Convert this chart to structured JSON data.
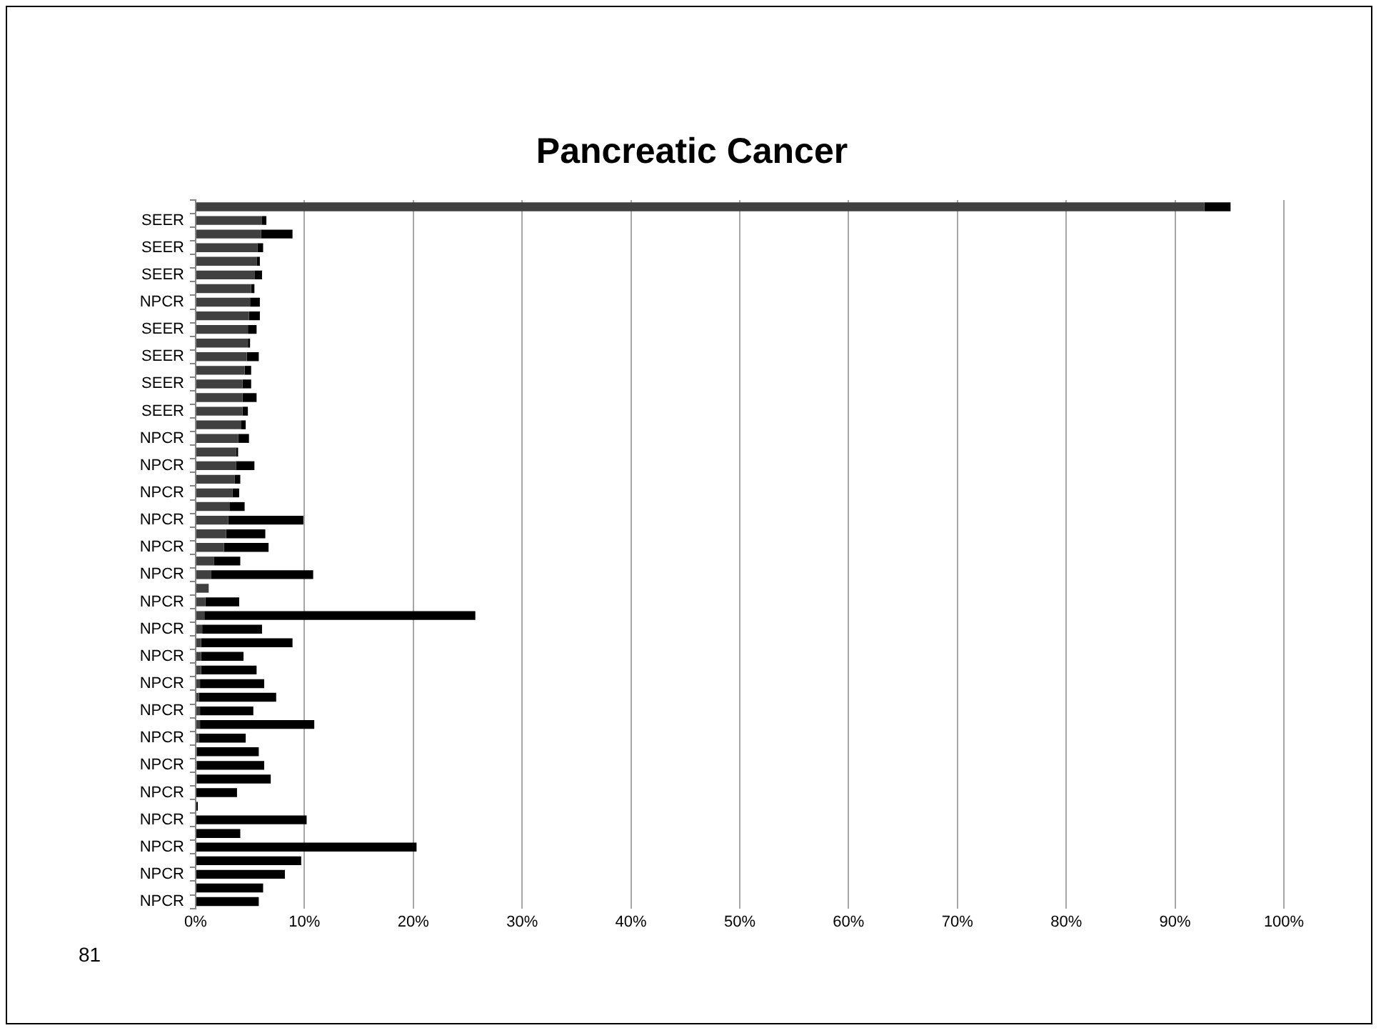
{
  "chart_data": {
    "type": "bar",
    "title": "Pancreatic Cancer",
    "orientation": "horizontal",
    "stacked": true,
    "grid": "x",
    "legend": false,
    "categories": [
      null,
      "SEER",
      null,
      "SEER",
      null,
      "SEER",
      null,
      "NPCR",
      null,
      "SEER",
      null,
      "SEER",
      null,
      "SEER",
      null,
      "SEER",
      null,
      "NPCR",
      null,
      "NPCR",
      null,
      "NPCR",
      null,
      "NPCR",
      null,
      "NPCR",
      null,
      "NPCR",
      null,
      "NPCR",
      null,
      "NPCR",
      null,
      "NPCR",
      null,
      "NPCR",
      null,
      "NPCR",
      null,
      "NPCR",
      null,
      "NPCR",
      null,
      "NPCR",
      null,
      "NPCR",
      null,
      "NPCR",
      null,
      "NPCR",
      null,
      "NPCR"
    ],
    "series": [
      {
        "color": "#404040",
        "values": [
          92.7,
          6.1,
          6.0,
          5.7,
          5.6,
          5.4,
          5.1,
          5.0,
          4.9,
          4.8,
          4.8,
          4.7,
          4.5,
          4.3,
          4.3,
          4.3,
          4.2,
          3.9,
          3.7,
          3.7,
          3.6,
          3.4,
          3.1,
          3.0,
          2.8,
          2.6,
          1.7,
          1.4,
          1.2,
          0.9,
          0.8,
          0.6,
          0.5,
          0.5,
          0.5,
          0.4,
          0.3,
          0.4,
          0.4,
          0.3,
          0.1,
          0.1,
          0.1,
          0,
          0,
          0,
          0,
          0,
          0,
          0,
          0,
          0
        ]
      },
      {
        "color": "#000000",
        "values": [
          2.4,
          0.4,
          2.9,
          0.5,
          0.3,
          0.7,
          0.3,
          0.9,
          1.0,
          0.8,
          0.2,
          1.1,
          0.6,
          0.8,
          1.3,
          0.5,
          0.4,
          1.0,
          0.2,
          1.7,
          0.5,
          0.6,
          1.4,
          6.9,
          3.6,
          4.1,
          2.4,
          9.4,
          0,
          3.1,
          24.9,
          5.5,
          8.4,
          3.9,
          5.1,
          5.9,
          7.1,
          4.9,
          10.5,
          4.3,
          5.7,
          6.2,
          6.8,
          3.8,
          0.2,
          10.2,
          4.1,
          20.3,
          9.7,
          8.2,
          6.2,
          5.8
        ]
      }
    ],
    "xlim": [
      0,
      100
    ],
    "xticks": [
      {
        "value": 0,
        "label": "0%"
      },
      {
        "value": 10,
        "label": "10%"
      },
      {
        "value": 20,
        "label": "20%"
      },
      {
        "value": 30,
        "label": "30%"
      },
      {
        "value": 40,
        "label": "40%"
      },
      {
        "value": 50,
        "label": "50%"
      },
      {
        "value": 60,
        "label": "60%"
      },
      {
        "value": 70,
        "label": "70%"
      },
      {
        "value": 80,
        "label": "80%"
      },
      {
        "value": 90,
        "label": "90%"
      },
      {
        "value": 100,
        "label": "100%"
      }
    ],
    "annotations": [
      "81"
    ]
  }
}
